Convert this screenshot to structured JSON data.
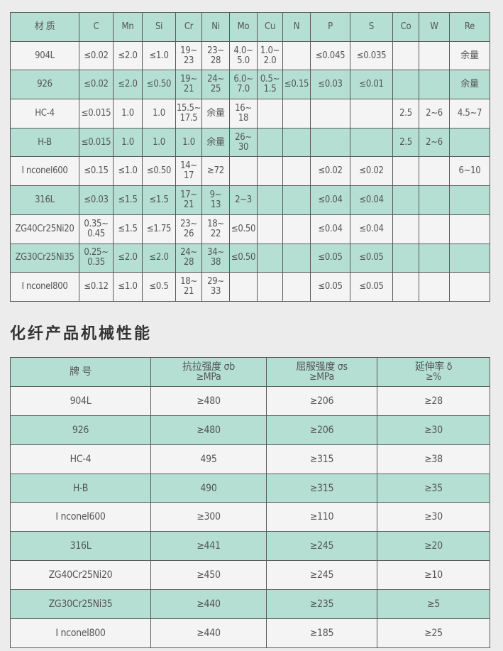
{
  "composition": {
    "headers": [
      "材 质",
      "C",
      "Mn",
      "Si",
      "Cr",
      "Ni",
      "Mo",
      "Cu",
      "N",
      "P",
      "S",
      "Co",
      "W",
      "Re"
    ],
    "rows": [
      [
        "904L",
        "≤0.02",
        "≤2.0",
        "≤1.0",
        "19~\n23",
        "23~\n28",
        "4.0~\n5.0",
        "1.0~\n2.0",
        "",
        "≤0.045",
        "≤0.035",
        "",
        "",
        "余量"
      ],
      [
        "926",
        "≤0.02",
        "≤2.0",
        "≤0.50",
        "19~\n21",
        "24~\n25",
        "6.0~\n7.0",
        "0.5~\n1.5",
        "≤0.15",
        "≤0.03",
        "≤0.01",
        "",
        "",
        "余量"
      ],
      [
        "HC-4",
        "≤0.015",
        "1.0",
        "1.0",
        "15.5~\n17.5",
        "余量",
        "16~\n18",
        "",
        "",
        "",
        "",
        "2.5",
        "2~6",
        "4.5~7"
      ],
      [
        "H-B",
        "≤0.015",
        "1.0",
        "1.0",
        "1.0",
        "余量",
        "26~\n30",
        "",
        "",
        "",
        "",
        "2.5",
        "2~6",
        ""
      ],
      [
        "I nconel600",
        "≤0.15",
        "≤1.0",
        "≤0.50",
        "14~\n17",
        "≥72",
        "",
        "",
        "",
        "≤0.02",
        "≤0.02",
        "",
        "",
        "6~10"
      ],
      [
        "316L",
        "≤0.03",
        "≤1.5",
        "≤1.5",
        "17~\n21",
        "9~\n13",
        "2~3",
        "",
        "",
        "≤0.04",
        "≤0.04",
        "",
        "",
        ""
      ],
      [
        "ZG40Cr25Ni20",
        "0.35~\n0.45",
        "≤1.5",
        "≤1.75",
        "23~\n26",
        "18~\n22",
        "≤0.50",
        "",
        "",
        "≤0.04",
        "≤0.04",
        "",
        "",
        ""
      ],
      [
        "ZG30Cr25Ni35",
        "0.25~\n0.35",
        "≤2.0",
        "≤2.0",
        "24~\n28",
        "34~\n38",
        "≤0.50",
        "",
        "",
        "≤0.05",
        "≤0.05",
        "",
        "",
        ""
      ],
      [
        "I nconel800",
        "≤0.12",
        "≤1.0",
        "≤0.5",
        "18~\n21",
        "29~\n33",
        "",
        "",
        "",
        "≤0.05",
        "≤0.05",
        "",
        "",
        ""
      ]
    ]
  },
  "mechanical": {
    "title": "化纤产品机械性能",
    "headers": [
      "牌 号",
      "抗拉强度 σb\n≥MPa",
      "屈服强度 σs\n≥MPa",
      "延伸率 δ\n≥%"
    ],
    "rows": [
      [
        "904L",
        "≥480",
        "≥206",
        "≥28"
      ],
      [
        "926",
        "≥480",
        "≥206",
        "≥30"
      ],
      [
        "HC-4",
        "495",
        "≥315",
        "≥38"
      ],
      [
        "H-B",
        "490",
        "≥315",
        "≥35"
      ],
      [
        "I nconel600",
        "≥300",
        "≥110",
        "≥30"
      ],
      [
        "316L",
        "≥441",
        "≥245",
        "≥20"
      ],
      [
        "ZG40Cr25Ni20",
        "≥450",
        "≥245",
        "≥10"
      ],
      [
        "ZG30Cr25Ni35",
        "≥440",
        "≥235",
        "≥5"
      ],
      [
        "I nconel800",
        "≥440",
        "≥185",
        "≥25"
      ]
    ]
  },
  "colors": {
    "green_row": "#b4dfd2",
    "white_row": "#f4f4f4",
    "border": "#5a5a5a"
  }
}
